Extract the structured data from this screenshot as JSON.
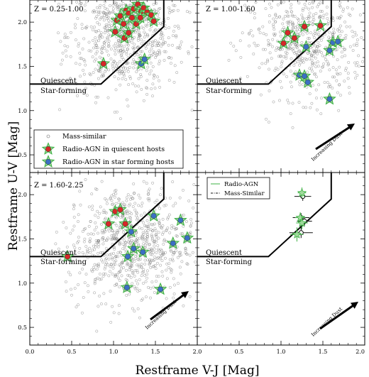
{
  "figure": {
    "xlabel": "Restframe V-J [Mag]",
    "ylabel": "Restframe U-V [Mag]",
    "region_upper": "Quiescent",
    "region_lower": "Star-forming",
    "dust_label": "Increasing Dust"
  },
  "legend_top": {
    "items": [
      "Mass-similar",
      "Radio-AGN in quiescent hosts",
      "Radio-AGN in star forming hosts"
    ]
  },
  "legend_stack": {
    "items": [
      "Radio-AGN",
      "Mass-Similar"
    ]
  },
  "colors": {
    "quiescent_agn": "#d62728",
    "starforming_agn": "#3b6fc4",
    "star_outline": "#3cb043",
    "mass_similar": "#777777",
    "stack_radio": "#3cb043",
    "stack_mass": "#111111"
  },
  "chart_data": [
    {
      "type": "scatter",
      "panel": "top-left",
      "title": "Z = 0.25-1.00",
      "xlim": [
        0,
        2.0
      ],
      "ylim": [
        0.3,
        2.25
      ],
      "quiescent_agn": [
        [
          1.02,
          1.89
        ],
        [
          1.04,
          2.02
        ],
        [
          1.08,
          2.07
        ],
        [
          1.12,
          1.98
        ],
        [
          1.15,
          2.13
        ],
        [
          1.18,
          2.1
        ],
        [
          1.22,
          2.05
        ],
        [
          1.24,
          2.15
        ],
        [
          1.27,
          1.98
        ],
        [
          1.29,
          2.2
        ],
        [
          1.33,
          2.12
        ],
        [
          1.36,
          2.16
        ],
        [
          1.4,
          2.11
        ],
        [
          1.45,
          2.08
        ],
        [
          1.48,
          2.01
        ],
        [
          1.13,
          1.82
        ],
        [
          1.18,
          1.88
        ],
        [
          1.32,
          2.05
        ]
      ],
      "starforming_agn": [
        [
          1.33,
          1.53
        ],
        [
          1.37,
          1.58
        ]
      ],
      "other_agn": [
        [
          0.88,
          1.53
        ]
      ],
      "density": {
        "center": [
          1.15,
          1.85
        ],
        "spread": [
          0.35,
          0.33
        ],
        "count": 750
      }
    },
    {
      "type": "scatter",
      "panel": "top-right",
      "title": "Z = 1.00-1.60",
      "xlim": [
        0,
        2.0
      ],
      "ylim": [
        0.3,
        2.25
      ],
      "quiescent_agn": [
        [
          1.08,
          1.88
        ],
        [
          1.16,
          1.82
        ],
        [
          1.28,
          1.95
        ],
        [
          1.47,
          1.96
        ],
        [
          1.03,
          1.76
        ]
      ],
      "starforming_agn": [
        [
          1.62,
          1.77
        ],
        [
          1.68,
          1.78
        ],
        [
          1.58,
          1.68
        ],
        [
          1.22,
          1.4
        ],
        [
          1.28,
          1.39
        ],
        [
          1.32,
          1.32
        ],
        [
          1.58,
          1.13
        ],
        [
          1.3,
          1.72
        ]
      ],
      "density": {
        "center": [
          1.3,
          1.75
        ],
        "spread": [
          0.35,
          0.3
        ],
        "count": 550
      }
    },
    {
      "type": "scatter",
      "panel": "bottom-left",
      "title": "Z = 1.60-2.25",
      "xlim": [
        0,
        2.0
      ],
      "ylim": [
        0.3,
        2.25
      ],
      "quiescent_agn": [
        [
          1.02,
          1.81
        ],
        [
          1.08,
          1.83
        ],
        [
          1.14,
          1.67
        ],
        [
          0.94,
          1.67
        ]
      ],
      "starforming_agn": [
        [
          1.48,
          1.76
        ],
        [
          1.8,
          1.71
        ],
        [
          1.88,
          1.51
        ],
        [
          1.21,
          1.58
        ],
        [
          1.24,
          1.39
        ],
        [
          1.17,
          1.3
        ],
        [
          1.71,
          1.45
        ],
        [
          1.35,
          1.35
        ],
        [
          1.16,
          0.95
        ],
        [
          1.56,
          0.93
        ]
      ],
      "other_agn": [
        [
          0.45,
          1.3
        ]
      ],
      "density": {
        "center": [
          1.2,
          1.45
        ],
        "spread": [
          0.38,
          0.33
        ],
        "count": 800
      }
    },
    {
      "type": "scatter",
      "panel": "bottom-right",
      "xlim": [
        0,
        2.0
      ],
      "ylim": [
        0.3,
        2.25
      ],
      "radio_agn_stack": [
        {
          "x": 1.25,
          "y": 2.02,
          "xerr": 0.05,
          "yerr": 0.06
        },
        {
          "x": 1.23,
          "y": 1.74,
          "xerr": 0.06,
          "yerr": 0.06
        },
        {
          "x": 1.25,
          "y": 1.68,
          "xerr": 0.07,
          "yerr": 0.07
        },
        {
          "x": 1.19,
          "y": 1.55,
          "xerr": 0.08,
          "yerr": 0.08
        }
      ],
      "mass_similar_stack": [
        {
          "x": 1.26,
          "y": 1.98,
          "xerr": 0.1,
          "yerr": 0.05
        },
        {
          "x": 1.24,
          "y": 1.74,
          "xerr": 0.1,
          "yerr": 0.05
        },
        {
          "x": 1.28,
          "y": 1.7,
          "xerr": 0.09,
          "yerr": 0.05
        },
        {
          "x": 1.24,
          "y": 1.57,
          "xerr": 0.14,
          "yerr": 0.06
        }
      ]
    }
  ],
  "axes": {
    "xticks": [
      "0.0",
      "0.5",
      "1.0",
      "1.5",
      "2.0",
      "0.5",
      "1.0",
      "1.5",
      "2.0"
    ],
    "yticks": [
      "2.0",
      "1.5",
      "1.0",
      "0.5"
    ]
  }
}
